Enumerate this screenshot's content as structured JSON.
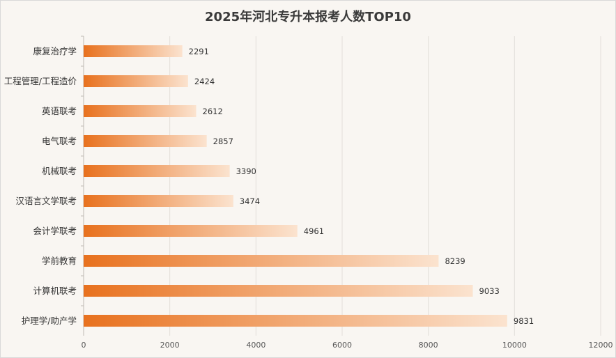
{
  "chart_data": {
    "type": "bar",
    "orientation": "horizontal",
    "title": "2025年河北专升本报考人数TOP10",
    "categories": [
      "康复治疗学",
      "工程管理/工程造价",
      "英语联考",
      "电气联考",
      "机械联考",
      "汉语言文学联考",
      "会计学联考",
      "学前教育",
      "计算机联考",
      "护理学/助产学"
    ],
    "values": [
      2291,
      2424,
      2612,
      2857,
      3390,
      3474,
      4961,
      8239,
      9033,
      9831
    ],
    "xlim": [
      0,
      12000
    ],
    "xticks": [
      "0",
      "2000",
      "4000",
      "6000",
      "8000",
      "10000",
      "12000"
    ],
    "grid": true,
    "bar_color_start": "#e8711e",
    "bar_color_end": "#fbe3cf",
    "xlabel": "",
    "ylabel": ""
  }
}
